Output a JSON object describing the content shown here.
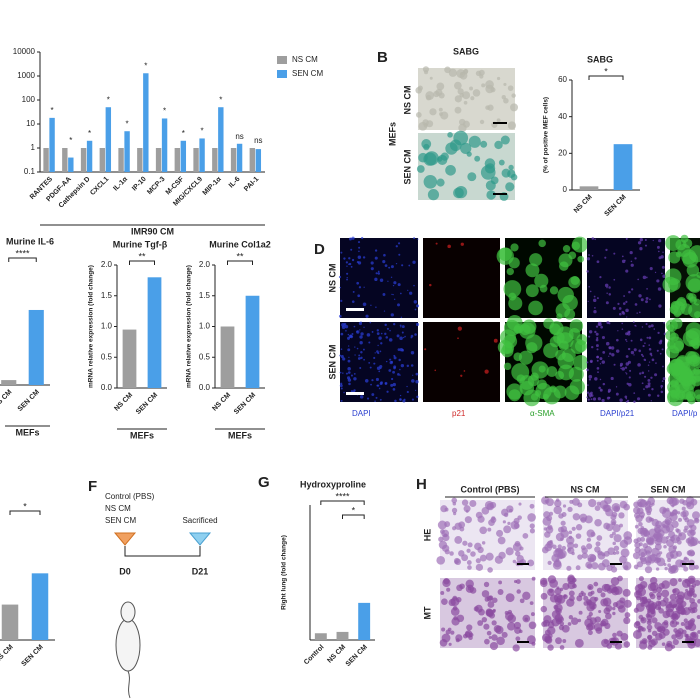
{
  "chart_data": [
    {
      "type": "bar",
      "log": true,
      "categories": [
        "RANTES",
        "PDGF-AA",
        "Cathepsin D",
        "CXCL1",
        "IL-1α",
        "IP-10",
        "MCP-3",
        "M-CSF",
        "MIG/CXCL9",
        "MIP-1α",
        "IL-6",
        "PAI-1"
      ],
      "series": [
        {
          "name": "NS CM",
          "color": "#9e9e9e",
          "values": [
            1,
            1,
            1,
            1,
            1,
            1,
            1,
            1,
            1,
            1,
            1,
            1
          ]
        },
        {
          "name": "SEN CM",
          "color": "#4a9fe8",
          "values": [
            18,
            0.4,
            2,
            50,
            5,
            1300,
            17,
            2,
            2.5,
            50,
            1.5,
            0.9
          ]
        }
      ],
      "annotations": [
        "*",
        "*",
        "*",
        "*",
        "*",
        "*",
        "*",
        "*",
        "*",
        "*",
        "ns",
        "ns"
      ],
      "ylim": [
        0.1,
        10000
      ],
      "yticks": [
        {
          "value": 0.1,
          "label": "0.1"
        },
        1,
        10,
        100,
        1000,
        10000
      ],
      "xlabel": "IMR90 CM",
      "legend": "right"
    },
    {
      "type": "bar",
      "title": "SABG",
      "categories": [
        "NS CM",
        "SEN CM"
      ],
      "values": [
        2,
        25
      ],
      "colors": [
        "#9e9e9e",
        "#4a9fe8"
      ],
      "ylim": [
        0,
        60
      ],
      "yticks": [
        0,
        20,
        40,
        60
      ],
      "ylabel": "(% of positive MEF cells)",
      "significance": [
        "*"
      ]
    },
    {
      "type": "bar",
      "title": "Murine IL-6",
      "categories": [
        "NS CM",
        "SEN CM"
      ],
      "values": [
        0.4,
        6.1
      ],
      "colors": [
        "#9e9e9e",
        "#4a9fe8"
      ],
      "ylim": [
        0,
        10
      ],
      "xlabel": "MEFs",
      "significance": [
        "****"
      ]
    },
    {
      "type": "bar",
      "title": "Murine Tgf-β",
      "categories": [
        "NS CM",
        "SEN CM"
      ],
      "values": [
        0.95,
        1.8
      ],
      "colors": [
        "#9e9e9e",
        "#4a9fe8"
      ],
      "ylim": [
        0,
        2
      ],
      "yticks": [
        {
          "value": 0,
          "label": "0.0"
        },
        0.5,
        {
          "value": 1,
          "label": "1.0"
        },
        1.5,
        {
          "value": 2,
          "label": "2.0"
        }
      ],
      "ylabel": "mRNA relative expression (fold change)",
      "xlabel": "MEFs",
      "significance": [
        "**"
      ]
    },
    {
      "type": "bar",
      "title": "Murine Col1a2",
      "categories": [
        "NS CM",
        "SEN CM"
      ],
      "values": [
        1.0,
        1.5
      ],
      "colors": [
        "#9e9e9e",
        "#4a9fe8"
      ],
      "ylim": [
        0,
        2
      ],
      "yticks": [
        {
          "value": 0,
          "label": "0.0"
        },
        0.5,
        {
          "value": 1,
          "label": "1.0"
        },
        1.5,
        {
          "value": 2,
          "label": "2.0"
        }
      ],
      "ylabel": "mRNA relative expression (fold change)",
      "xlabel": "MEFs",
      "significance": [
        "**"
      ]
    },
    {
      "type": "bar",
      "categories": [
        "NS CM",
        "SEN CM"
      ],
      "values": [
        0.85,
        1.6
      ],
      "colors": [
        "#9e9e9e",
        "#4a9fe8"
      ],
      "ylim": [
        0,
        3
      ],
      "significance": [
        "*"
      ]
    },
    {
      "type": "bar",
      "title": "Hydroxyproline",
      "categories": [
        "Control",
        "NS CM",
        "SEN CM"
      ],
      "values": [
        1,
        1.2,
        5.5
      ],
      "colors": [
        "#9e9e9e",
        "#9e9e9e",
        "#4a9fe8"
      ],
      "ylim": [
        0,
        20
      ],
      "ylabel": "Right lung (fold change)",
      "significance": [
        "****",
        "*"
      ]
    }
  ],
  "panels": {
    "B": {
      "letter": "B",
      "image_title": "SABG",
      "rows": [
        "NS CM",
        "SEN CM"
      ],
      "group": "MEFs"
    },
    "D": {
      "letter": "D",
      "rows": [
        "NS CM",
        "SEN CM"
      ],
      "columns": [
        "DAPI",
        "p21",
        "α-SMA",
        "DAPI/p21",
        "DAPI/p"
      ]
    },
    "F": {
      "letter": "F",
      "groups": [
        "Control (PBS)",
        "NS CM",
        "SEN CM"
      ],
      "end": "Sacrificed",
      "start_day": "D0",
      "end_day": "D21"
    },
    "G": {
      "letter": "G"
    },
    "H": {
      "letter": "H",
      "columns": [
        "Control (PBS)",
        "NS CM",
        "SEN CM"
      ],
      "rows": [
        "HE",
        "MT"
      ]
    }
  }
}
